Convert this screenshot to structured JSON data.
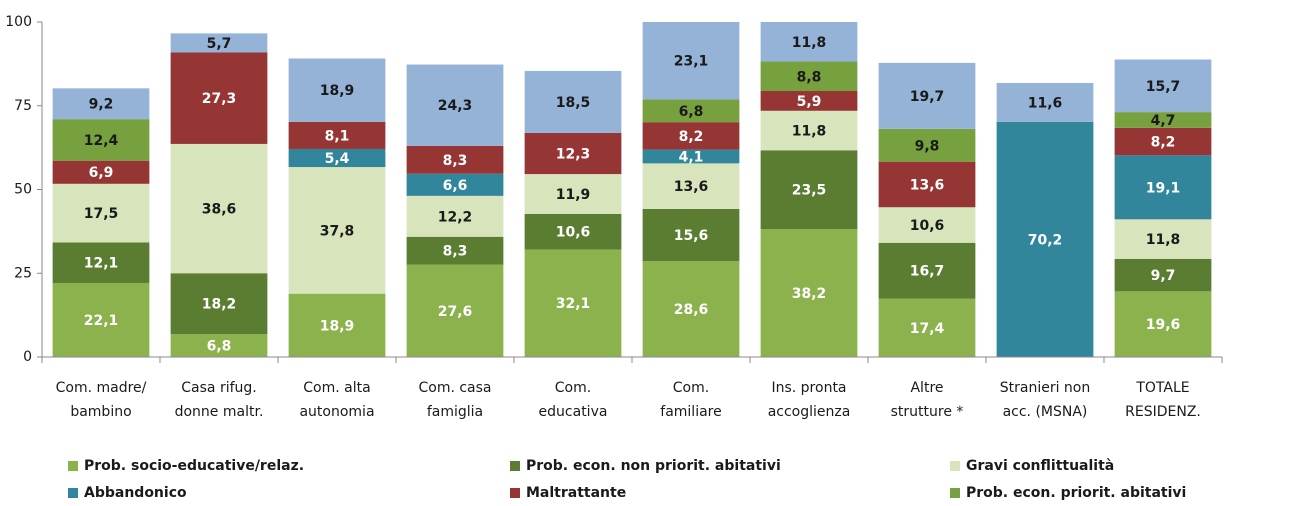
{
  "chart_data": {
    "type": "stacked_bar",
    "categories": [
      [
        "Com. madre/",
        "bambino"
      ],
      [
        "Casa rifug.",
        "donne maltr."
      ],
      [
        "Com. alta",
        "autonomia"
      ],
      [
        "Com. casa",
        "famiglia"
      ],
      [
        "Com.",
        "educativa"
      ],
      [
        "Com.",
        "familiare"
      ],
      [
        "Ins. pronta",
        "accoglienza"
      ],
      [
        "Altre",
        "strutture *"
      ],
      [
        "Stranieri non",
        "acc. (MSNA)"
      ],
      [
        "TOTALE",
        "RESIDENZ."
      ]
    ],
    "series": [
      {
        "name": "Prob. socio-educative/relaz.",
        "color": "#8cb24e",
        "label_color": "#ffffff",
        "values": [
          22.1,
          6.8,
          18.9,
          27.6,
          32.1,
          28.6,
          38.2,
          17.4,
          null,
          19.6
        ],
        "value_labels": [
          "22,1",
          "6,8",
          "18,9",
          "27,6",
          "32,1",
          "28,6",
          "38,2",
          "17,4",
          null,
          "19,6"
        ]
      },
      {
        "name": "Prob. econ. non priorit. abitativi",
        "color": "#5b7d31",
        "label_color": "#ffffff",
        "values": [
          12.1,
          18.2,
          null,
          8.3,
          10.6,
          15.6,
          23.5,
          16.7,
          null,
          9.7
        ],
        "value_labels": [
          "12,1",
          "18,2",
          null,
          "8,3",
          "10,6",
          "15,6",
          "23,5",
          "16,7",
          null,
          "9,7"
        ]
      },
      {
        "name": "Gravi conflittualità",
        "color": "#d8e4bc",
        "label_color": "#1a1a1a",
        "values": [
          17.5,
          38.6,
          37.8,
          12.2,
          11.9,
          13.6,
          11.8,
          10.6,
          null,
          11.8
        ],
        "value_labels": [
          "17,5",
          "38,6",
          "37,8",
          "12,2",
          "11,9",
          "13,6",
          "11,8",
          "10,6",
          null,
          "11,8"
        ]
      },
      {
        "name": "Abbandonico",
        "color": "#31869b",
        "label_color": "#ffffff",
        "values": [
          null,
          null,
          5.4,
          6.6,
          null,
          4.1,
          null,
          null,
          70.2,
          19.1
        ],
        "value_labels": [
          null,
          null,
          "5,4",
          "6,6",
          null,
          "4,1",
          null,
          null,
          "70,2",
          "19,1"
        ]
      },
      {
        "name": "Maltrattante",
        "color": "#963634",
        "label_color": "#ffffff",
        "values": [
          6.9,
          27.3,
          8.1,
          8.3,
          12.3,
          8.2,
          5.9,
          13.6,
          null,
          8.2
        ],
        "value_labels": [
          "6,9",
          "27,3",
          "8,1",
          "8,3",
          "12,3",
          "8,2",
          "5,9",
          "13,6",
          null,
          "8,2"
        ]
      },
      {
        "name": "Prob. econ. priorit. abitativi",
        "color": "#77a03e",
        "label_color": "#1a1a1a",
        "values": [
          12.4,
          null,
          null,
          null,
          null,
          6.8,
          8.8,
          9.8,
          null,
          4.7
        ],
        "value_labels": [
          "12,4",
          null,
          null,
          null,
          null,
          "6,8",
          "8,8",
          "9,8",
          null,
          "4,7"
        ]
      },
      {
        "color": "#95b3d7",
        "label_color": "#1a1a1a",
        "values": [
          9.2,
          5.7,
          18.9,
          24.3,
          18.5,
          23.1,
          11.8,
          19.7,
          11.6,
          15.7
        ],
        "value_labels": [
          "9,2",
          "5,7",
          "18,9",
          "24,3",
          "18,5",
          "23,1",
          "11,8",
          "19,7",
          "11,6",
          "15,7"
        ]
      }
    ],
    "ylim": [
      0,
      100
    ],
    "yticks": [
      0,
      25,
      50,
      75,
      100
    ],
    "grid": false
  }
}
